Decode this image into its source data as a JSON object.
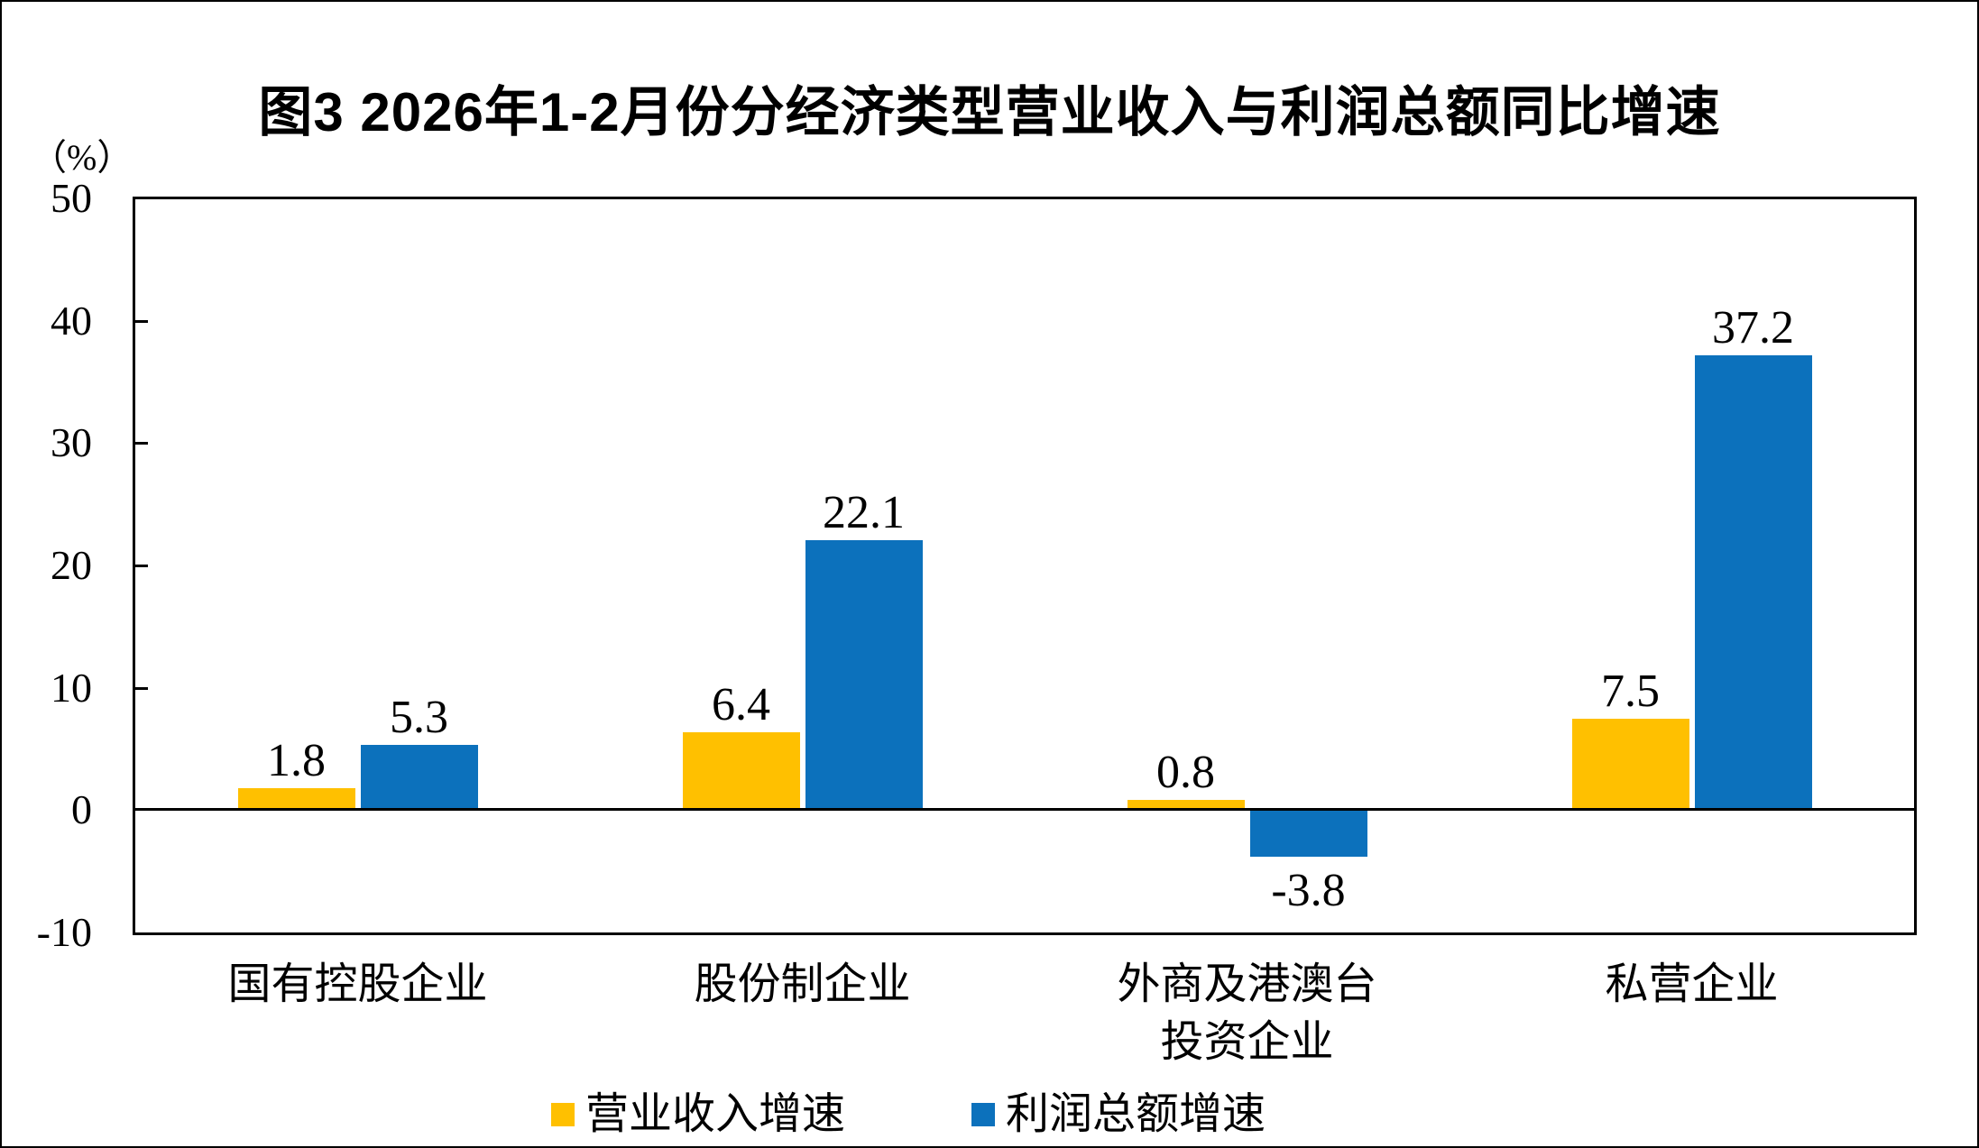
{
  "chart_data": {
    "type": "bar",
    "title": "图3 2026年1-2月份分经济类型营业收入与利润总额同比增速",
    "categories": [
      "国有控股企业",
      "股份制企业",
      "外商及港澳台\n投资企业",
      "私营企业"
    ],
    "series": [
      {
        "name": "营业收入增速",
        "color": "#FFC000",
        "values": [
          1.8,
          6.4,
          0.8,
          7.5
        ]
      },
      {
        "name": "利润总额增速",
        "color": "#0C71BC",
        "values": [
          5.3,
          22.1,
          -3.8,
          37.2
        ]
      }
    ],
    "xlabel": "",
    "ylabel": "（%）",
    "ylim": [
      -10,
      50
    ],
    "y_step": 10,
    "grid": false,
    "value_labels": true,
    "legend_position": "bottom",
    "axis_color": "#000000",
    "text_color": "#000000"
  }
}
